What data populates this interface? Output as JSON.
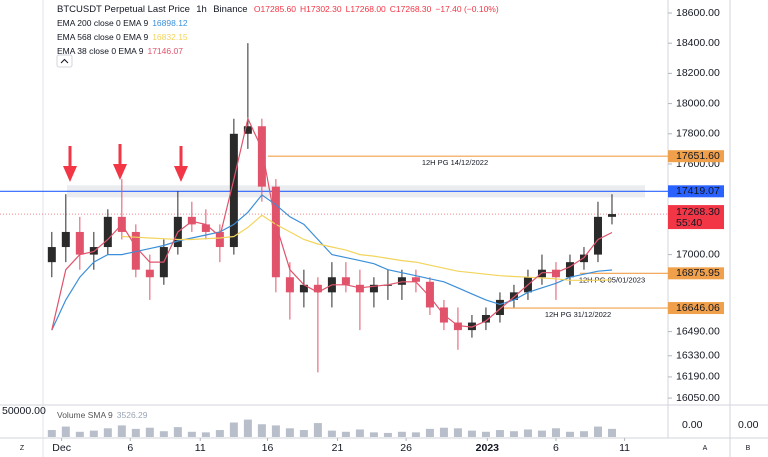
{
  "chart_data": {
    "type": "candlestick",
    "title": "BTCUSDT Perpetual Last Price",
    "interval": "1h",
    "exchange": "Binance",
    "ohlc_labels": [
      "O17285.60",
      "H17302.30",
      "L17268.00",
      "C17268.30"
    ],
    "change_label": "−17.40 (−0.10%)",
    "up_color": "#2a2a2a",
    "down_color": "#e0536b",
    "open": [
      16950,
      17050,
      17150,
      17000,
      17050,
      17250,
      17150,
      16900,
      16850,
      17050,
      17250,
      17200,
      17150,
      17050,
      17800,
      17850,
      17450,
      16850,
      16750,
      16800,
      16750,
      16850,
      16800,
      16750,
      16800,
      16800,
      16850,
      16820,
      16650,
      16550,
      16500,
      16550,
      16600,
      16700,
      16750,
      16850,
      16900,
      16850,
      16950,
      17000,
      17250
    ],
    "high": [
      17150,
      17400,
      17250,
      17150,
      17300,
      17500,
      17200,
      17000,
      17100,
      17420,
      17350,
      17300,
      17200,
      17900,
      18400,
      17900,
      17500,
      16950,
      16900,
      16850,
      16950,
      16950,
      16900,
      16850,
      16900,
      16900,
      16900,
      16850,
      16700,
      16650,
      16600,
      16650,
      16750,
      16800,
      16900,
      17000,
      16950,
      17000,
      17050,
      17350,
      17400
    ],
    "low": [
      16850,
      16950,
      16900,
      16900,
      17000,
      17100,
      16850,
      16700,
      16800,
      17000,
      17150,
      17100,
      16950,
      17000,
      17700,
      17350,
      16750,
      16570,
      16650,
      16220,
      16650,
      16750,
      16500,
      16650,
      16700,
      16700,
      16750,
      16600,
      16500,
      16370,
      16450,
      16500,
      16550,
      16650,
      16700,
      16800,
      16700,
      16800,
      16900,
      16950,
      17200
    ],
    "close": [
      17050,
      17150,
      17000,
      17050,
      17250,
      17150,
      16900,
      16850,
      17050,
      17250,
      17200,
      17150,
      17050,
      17800,
      17850,
      17450,
      16850,
      16750,
      16800,
      16750,
      16850,
      16800,
      16750,
      16800,
      16800,
      16850,
      16820,
      16650,
      16550,
      16500,
      16550,
      16600,
      16700,
      16750,
      16850,
      16900,
      16850,
      16950,
      17000,
      17250,
      17268.3
    ],
    "series": [
      {
        "name": "EMA 200 close 0 EMA 9",
        "value_label": "16898.12",
        "color": "#3b8fd9",
        "values": [
          16500,
          16700,
          16850,
          16950,
          17000,
          17000,
          17020,
          17040,
          17060,
          17090,
          17110,
          17130,
          17150,
          17200,
          17280,
          17395,
          17330,
          17250,
          17200,
          17100,
          17000,
          16980,
          16960,
          16940,
          16900,
          16880,
          16860,
          16840,
          16820,
          16780,
          16740,
          16700,
          16670,
          16700,
          16750,
          16780,
          16810,
          16850,
          16870,
          16890,
          16898.12
        ]
      },
      {
        "name": "EMA 568 close 0 EMA 9",
        "value_label": "16832.15",
        "color": "#f2d45c",
        "values": [
          null,
          null,
          null,
          null,
          null,
          17120,
          17115,
          17110,
          17105,
          17100,
          17100,
          17105,
          17110,
          17120,
          17180,
          17260,
          17200,
          17150,
          17100,
          17070,
          17050,
          17030,
          17000,
          16990,
          16975,
          16960,
          16950,
          16930,
          16910,
          16890,
          16880,
          16870,
          16860,
          16855,
          16850,
          16845,
          16840,
          16830,
          16830,
          16830,
          16832.15
        ]
      },
      {
        "name": "EMA 38 close 0 EMA 9",
        "value_label": "17146.07",
        "color": "#e0536b",
        "values": [
          16500,
          16900,
          17000,
          17020,
          17100,
          17200,
          17050,
          16950,
          16950,
          17150,
          17220,
          17200,
          17120,
          17500,
          17900,
          17700,
          17200,
          16900,
          16800,
          16750,
          16800,
          16800,
          16780,
          16790,
          16800,
          16820,
          16820,
          16720,
          16600,
          16530,
          16520,
          16560,
          16640,
          16720,
          16800,
          16880,
          16880,
          16920,
          16980,
          17100,
          17146.07
        ]
      }
    ],
    "levels": [
      {
        "value": 17651.6,
        "price_label": "17651.60",
        "text": "12H PG 14/12/2022",
        "color": "#f0a04b"
      },
      {
        "value": 17419.07,
        "price_label": "17419.07",
        "color": "#2962ff"
      },
      {
        "value": 16875.95,
        "price_label": "16875.95",
        "text": "12H PG 05/01/2023",
        "color": "#f0a04b"
      },
      {
        "value": 16646.06,
        "price_label": "16646.06",
        "text": "12H PG 31/12/2022",
        "color": "#f0a04b"
      }
    ],
    "last_price": {
      "value": 17268.3,
      "label": "17268.30",
      "countdown": "55:40",
      "color": "#f23645"
    },
    "ylim": [
      16004,
      18686
    ],
    "yticks": [
      {
        "value": 18600,
        "label": "18600.00"
      },
      {
        "value": 18400,
        "label": "18400.00"
      },
      {
        "value": 18200,
        "label": "18200.00"
      },
      {
        "value": 18000,
        "label": "18000.00"
      },
      {
        "value": 17800,
        "label": "17800.00"
      },
      {
        "value": 17600,
        "label": "17600.00"
      },
      {
        "value": 17000,
        "label": "17000.00"
      },
      {
        "value": 16490,
        "label": "16490.00"
      },
      {
        "value": 16330,
        "label": "16330.00"
      },
      {
        "value": 16190,
        "label": "16190.00"
      },
      {
        "value": 16050,
        "label": "16050.00"
      }
    ],
    "xlim": [
      -3.7,
      44
    ],
    "xticks": [
      {
        "value": 0.7,
        "label": "Dec"
      },
      {
        "value": 5.6,
        "label": "6"
      },
      {
        "value": 10.6,
        "label": "11"
      },
      {
        "value": 15.4,
        "label": "16"
      },
      {
        "value": 20.4,
        "label": "21"
      },
      {
        "value": 25.3,
        "label": "26"
      },
      {
        "value": 31.1,
        "label": "2023"
      },
      {
        "value": 36,
        "label": "6"
      },
      {
        "value": 40.9,
        "label": "11"
      }
    ],
    "volume": {
      "name": "Volume SMA 9",
      "value_label": "3526.29",
      "color": "#9aa4b5",
      "ylim": [
        0,
        50000
      ],
      "top_label": "50000.00",
      "zero_label": "0.00",
      "extra_zero_label": "0.00",
      "values": [
        12000,
        18000,
        9000,
        11000,
        15000,
        20000,
        14000,
        16000,
        10000,
        17000,
        9000,
        8000,
        12000,
        25000,
        30000,
        22000,
        20000,
        15000,
        12000,
        24000,
        11000,
        9000,
        13000,
        8000,
        7000,
        9000,
        8000,
        14000,
        16000,
        15000,
        11000,
        9000,
        12000,
        10000,
        13000,
        11000,
        15000,
        9000,
        10000,
        18000,
        14000
      ]
    },
    "corner_labels": [
      "Z",
      "A",
      "B"
    ]
  }
}
